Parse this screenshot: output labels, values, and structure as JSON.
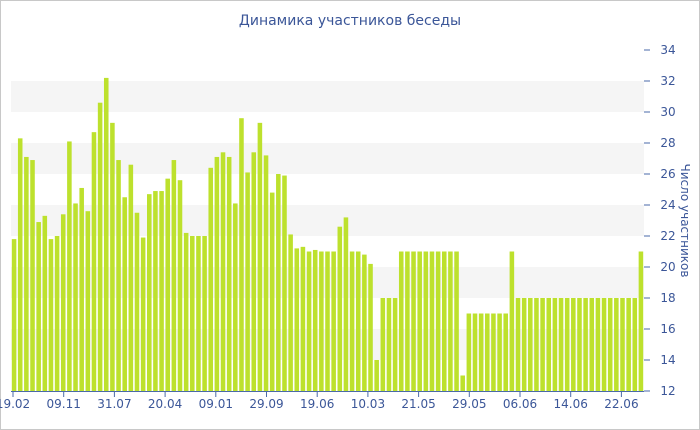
{
  "chart_data": {
    "type": "bar",
    "title": "Динамика участников беседы",
    "ylabel": "Число участников",
    "ylim": [
      12,
      34
    ],
    "y_ticks": [
      "12",
      "14",
      "16",
      "18",
      "20",
      "22",
      "24",
      "26",
      "28",
      "30",
      "32",
      "34"
    ],
    "x_tick_labels": [
      "19.02",
      "09.11",
      "31.07",
      "20.04",
      "09.01",
      "29.09",
      "19.06",
      "10.03",
      "21.05",
      "29.05",
      "06.06",
      "14.06",
      "22.06"
    ],
    "bar_color": "#bde12d",
    "band_color": "#f5f5f5",
    "values": [
      21.8,
      28.3,
      27.1,
      26.9,
      22.9,
      23.3,
      21.8,
      22.0,
      23.4,
      28.1,
      24.1,
      25.1,
      23.6,
      28.7,
      30.6,
      32.2,
      29.3,
      26.9,
      24.5,
      26.6,
      23.5,
      21.9,
      24.7,
      24.9,
      24.9,
      25.7,
      26.9,
      25.6,
      22.2,
      22.0,
      22.0,
      22.0,
      26.4,
      27.1,
      27.4,
      27.1,
      24.1,
      29.6,
      26.1,
      27.4,
      29.3,
      27.2,
      24.8,
      26.0,
      25.9,
      22.1,
      21.2,
      21.3,
      21.0,
      21.1,
      21.0,
      21.0,
      21.0,
      22.6,
      23.2,
      21.0,
      21.0,
      20.8,
      20.2,
      14.0,
      18.0,
      18.0,
      18.0,
      21.0,
      21.0,
      21.0,
      21.0,
      21.0,
      21.0,
      21.0,
      21.0,
      21.0,
      21.0,
      13.0,
      17.0,
      17.0,
      17.0,
      17.0,
      17.0,
      17.0,
      17.0,
      21.0,
      18.0,
      18.0,
      18.0,
      18.0,
      18.0,
      18.0,
      18.0,
      18.0,
      18.0,
      18.0,
      18.0,
      18.0,
      18.0,
      18.0,
      18.0,
      18.0,
      18.0,
      18.0,
      18.0,
      18.0,
      21.0
    ]
  }
}
